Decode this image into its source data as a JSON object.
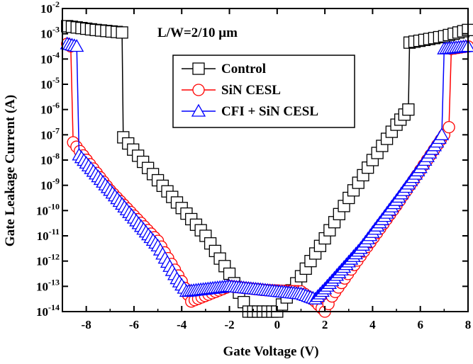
{
  "chart_data": {
    "type": "scatter",
    "title": "",
    "xlabel": "Gate Voltage (V)",
    "ylabel": "Gate Leakage Current (A)",
    "xlim": [
      -9,
      8
    ],
    "ylim_log10": [
      -14,
      -2
    ],
    "y_scale": "log",
    "x_ticks": [
      "-8",
      "-6",
      "-4",
      "-2",
      "0",
      "2",
      "4",
      "6",
      "8"
    ],
    "y_ticks": [
      {
        "base": "10",
        "exp": "-14"
      },
      {
        "base": "10",
        "exp": "-13"
      },
      {
        "base": "10",
        "exp": "-12"
      },
      {
        "base": "10",
        "exp": "-11"
      },
      {
        "base": "10",
        "exp": "-10"
      },
      {
        "base": "10",
        "exp": "-9"
      },
      {
        "base": "10",
        "exp": "-8"
      },
      {
        "base": "10",
        "exp": "-7"
      },
      {
        "base": "10",
        "exp": "-6"
      },
      {
        "base": "10",
        "exp": "-5"
      },
      {
        "base": "10",
        "exp": "-4"
      },
      {
        "base": "10",
        "exp": "-3"
      },
      {
        "base": "10",
        "exp": "-2"
      }
    ],
    "annotation": "L/W=2/10 μm",
    "legend_position": "upper-center",
    "series": [
      {
        "name": "Control",
        "color": "#000000",
        "marker": "square",
        "x": [
          -8.8,
          -7.6,
          -6.5,
          -6.45,
          -5,
          -4,
          -3,
          -2,
          -1.2,
          0,
          1.0,
          2.0,
          3.0,
          4.0,
          5.0,
          5.5,
          5.55,
          7.0,
          8.0
        ],
        "log_y": [
          -2.7,
          -2.85,
          -2.95,
          -7.1,
          -8.8,
          -9.9,
          -11.0,
          -12.5,
          -14.0,
          -14.0,
          -12.6,
          -11.1,
          -9.5,
          -8.0,
          -6.6,
          -6.0,
          -3.35,
          -3.1,
          -2.85
        ]
      },
      {
        "name": "SiN CESL",
        "color": "#ff0000",
        "marker": "circle",
        "x": [
          -8.8,
          -8.65,
          -8.55,
          -7,
          -5,
          -4.0,
          -3.6,
          -2,
          -0.5,
          1,
          1.6,
          2.0,
          2.3,
          3.5,
          5,
          6,
          7.0,
          7.2,
          7.3,
          8.0
        ],
        "log_y": [
          -3.4,
          -3.5,
          -7.3,
          -9.2,
          -11.2,
          -12.8,
          -13.6,
          -13.0,
          -13.15,
          -13.2,
          -13.6,
          -14.0,
          -13.4,
          -11.8,
          -9.8,
          -8.4,
          -7.0,
          -6.7,
          -3.6,
          -3.5
        ]
      },
      {
        "name": "CFI + SiN CESL",
        "color": "#0000ff",
        "marker": "triangle",
        "x": [
          -8.8,
          -8.4,
          -8.3,
          -7,
          -5,
          -4.2,
          -3.8,
          -2,
          -0.5,
          1.0,
          1.6,
          2.0,
          3.5,
          5,
          6,
          6.9,
          7.0,
          8.0
        ],
        "log_y": [
          -3.4,
          -3.5,
          -7.8,
          -9.2,
          -11.4,
          -12.7,
          -13.2,
          -13.0,
          -13.15,
          -13.3,
          -13.5,
          -13.1,
          -11.5,
          -9.6,
          -8.3,
          -7.0,
          -3.6,
          -3.5
        ]
      }
    ]
  }
}
